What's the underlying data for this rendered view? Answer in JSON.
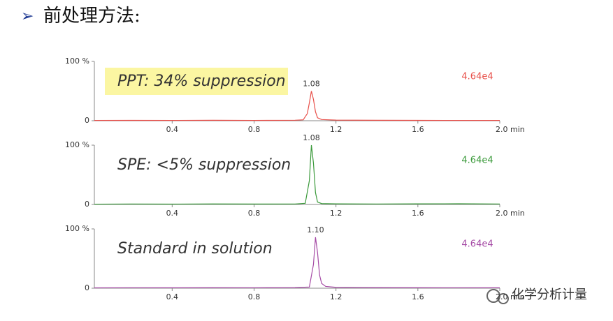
{
  "header": {
    "title": "前处理方法:"
  },
  "watermark": "化学分析计量",
  "chart_data": [
    {
      "type": "line",
      "annotation": "PPT: 34% suppression",
      "highlight": true,
      "intensity": "4.64e4",
      "peak": 1.08,
      "peak_height": 50,
      "color": "#e8504a",
      "x": [
        0.02,
        0.2,
        0.4,
        0.6,
        0.8,
        1.0,
        1.04,
        1.06,
        1.07,
        1.08,
        1.09,
        1.1,
        1.11,
        1.13,
        1.2,
        1.4,
        1.6,
        1.8,
        2.0
      ],
      "values": [
        0.5,
        0.6,
        0.5,
        0.7,
        0.5,
        0.8,
        1.5,
        12,
        30,
        50,
        36,
        15,
        5,
        2,
        1,
        0.7,
        0.6,
        0.5,
        0.5
      ],
      "xlim": [
        0.02,
        2.0
      ],
      "ylim": [
        0,
        100
      ],
      "xticks": [
        0.4,
        0.8,
        1.2,
        1.6,
        {
          "value": 2.0,
          "label": "2.0 min"
        }
      ],
      "yticks": [
        0,
        {
          "value": 100,
          "label": "100 %"
        }
      ]
    },
    {
      "type": "line",
      "annotation": "SPE: <5% suppression",
      "highlight": false,
      "intensity": "4.64e4",
      "peak": 1.08,
      "peak_height": 100,
      "color": "#3b9a3b",
      "x": [
        0.02,
        0.2,
        0.4,
        0.6,
        0.8,
        1.0,
        1.05,
        1.07,
        1.08,
        1.09,
        1.1,
        1.11,
        1.13,
        1.2,
        1.4,
        1.6,
        1.8,
        2.0
      ],
      "values": [
        0.5,
        0.8,
        0.6,
        0.9,
        0.7,
        0.8,
        2,
        40,
        100,
        70,
        20,
        4,
        1.5,
        1,
        0.8,
        1,
        1.2,
        0.8
      ],
      "xlim": [
        0.02,
        2.0
      ],
      "ylim": [
        0,
        100
      ],
      "xticks": [
        0.4,
        0.8,
        1.2,
        1.6,
        {
          "value": 2.0,
          "label": "2.0 min"
        }
      ],
      "yticks": [
        0,
        {
          "value": 100,
          "label": "100 %"
        }
      ]
    },
    {
      "type": "line",
      "annotation": "Standard in solution",
      "highlight": false,
      "intensity": "4.64e4",
      "peak": {
        "value": 1.1,
        "label": "1.10"
      },
      "peak_height": 86,
      "color": "#a54aa5",
      "x": [
        0.02,
        0.2,
        0.4,
        0.6,
        0.8,
        1.0,
        1.07,
        1.09,
        1.1,
        1.11,
        1.12,
        1.13,
        1.15,
        1.2,
        1.4,
        1.6,
        1.8,
        2.0
      ],
      "values": [
        0.6,
        0.8,
        0.7,
        0.9,
        0.8,
        1,
        2,
        40,
        86,
        60,
        22,
        8,
        3,
        1.5,
        1,
        0.9,
        0.8,
        0.7
      ],
      "xlim": [
        0.02,
        2.0
      ],
      "ylim": [
        0,
        100
      ],
      "xticks": [
        0.4,
        0.8,
        1.2,
        1.6,
        {
          "value": 2.0,
          "label": "2.0 min"
        }
      ],
      "yticks": [
        0,
        {
          "value": 100,
          "label": "100 %"
        }
      ]
    }
  ]
}
